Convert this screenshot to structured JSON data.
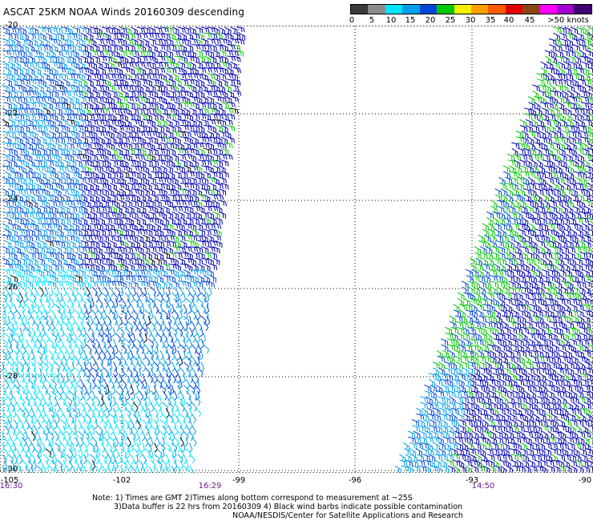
{
  "title": "ASCAT 25KM NOAA Winds 20160309 descending",
  "colorscale": {
    "colors": [
      "#3a3a3a",
      "#8c8c8c",
      "#00e5ff",
      "#00a0e8",
      "#0046d8",
      "#00c800",
      "#f2f200",
      "#ffa000",
      "#ff5a00",
      "#e00000",
      "#8b4513",
      "#ff00ff",
      "#a000d0",
      "#40006e"
    ],
    "labels": [
      "0",
      "5",
      "10",
      "15",
      "20",
      "25",
      "30",
      "35",
      "40",
      "45",
      ">50 knots"
    ]
  },
  "map": {
    "lat_labels": [
      "-20",
      "-22",
      "-24",
      "-26",
      "-28",
      "-30"
    ],
    "lon_labels": [
      "-105",
      "-102",
      "-99",
      "-96",
      "-93",
      "-90"
    ],
    "time_labels": [
      "16:30",
      "16:29",
      "14:50"
    ],
    "lat_range": [
      -30,
      -20
    ],
    "lon_range": [
      -105,
      -90
    ],
    "wind_colors": {
      "cyan": "#00e5ff",
      "lightblue": "#00a0e8",
      "blue": "#0046d8",
      "darkblue": "#0000b0",
      "green": "#00c800",
      "black": "#000000"
    }
  },
  "notes": {
    "line1": "Note: 1) Times are GMT 2)Times along bottom correspond to measurement at ~25S",
    "line2": "3)Data buffer is 22 hrs from 20160309 4) Black wind barbs indicate possible contamination",
    "line3": "NOAA/NESDIS/Center for Satellite Applications and Research"
  }
}
